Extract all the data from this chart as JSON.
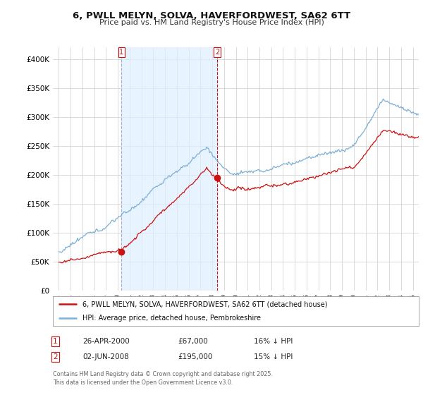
{
  "title_line1": "6, PWLL MELYN, SOLVA, HAVERFORDWEST, SA62 6TT",
  "title_line2": "Price paid vs. HM Land Registry's House Price Index (HPI)",
  "background_color": "#ffffff",
  "plot_bg_color": "#ffffff",
  "grid_color": "#cccccc",
  "legend_label_red": "6, PWLL MELYN, SOLVA, HAVERFORDWEST, SA62 6TT (detached house)",
  "legend_label_blue": "HPI: Average price, detached house, Pembrokeshire",
  "transaction1_date": "26-APR-2000",
  "transaction1_price": "£67,000",
  "transaction1_hpi": "16% ↓ HPI",
  "transaction1_x": 2000.32,
  "transaction1_y": 67000,
  "transaction2_date": "02-JUN-2008",
  "transaction2_price": "£195,000",
  "transaction2_hpi": "15% ↓ HPI",
  "transaction2_x": 2008.42,
  "transaction2_y": 195000,
  "footer": "Contains HM Land Registry data © Crown copyright and database right 2025.\nThis data is licensed under the Open Government Licence v3.0.",
  "ylim": [
    0,
    420000
  ],
  "xlim": [
    1994.5,
    2025.5
  ],
  "yticks": [
    0,
    50000,
    100000,
    150000,
    200000,
    250000,
    300000,
    350000,
    400000
  ],
  "ytick_labels": [
    "£0",
    "£50K",
    "£100K",
    "£150K",
    "£200K",
    "£250K",
    "£300K",
    "£350K",
    "£400K"
  ],
  "hpi_color": "#7bafd4",
  "prop_color": "#cc1111",
  "vline1_color": "#aaaacc",
  "vline2_color": "#cc1111",
  "shade_color": "#ddeeff"
}
